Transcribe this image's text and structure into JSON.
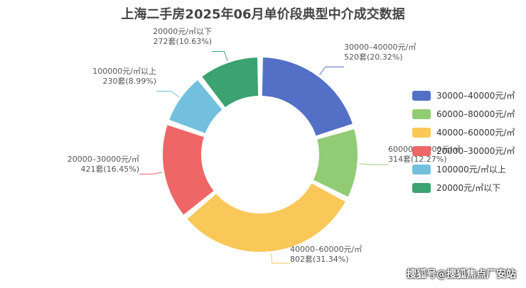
{
  "chart_data": {
    "type": "pie",
    "title": "上海二手房2025年06月单价段典型中介成交数据",
    "slices": [
      {
        "name": "30000–40000元/㎡",
        "count_label": "520套(20.32%)",
        "value": 20.32,
        "color": "#5470c6"
      },
      {
        "name": "60000–80000元/㎡",
        "count_label": "314套(12.27%)",
        "value": 12.27,
        "color": "#91cc75"
      },
      {
        "name": "40000–60000元/㎡",
        "count_label": "802套(31.34%)",
        "value": 31.34,
        "color": "#fac858"
      },
      {
        "name": "20000–30000元/㎡",
        "count_label": "421套(16.45%)",
        "value": 16.45,
        "color": "#ee6666"
      },
      {
        "name": "100000元/㎡以上",
        "count_label": "230套(8.99%)",
        "value": 8.99,
        "color": "#73c0de"
      },
      {
        "name": "20000元/㎡以下",
        "count_label": "272套(10.63%)",
        "value": 10.63,
        "color": "#3ba272"
      }
    ],
    "legend_position": "right"
  },
  "watermark": "搜狐号@搜狐焦点厂安站"
}
